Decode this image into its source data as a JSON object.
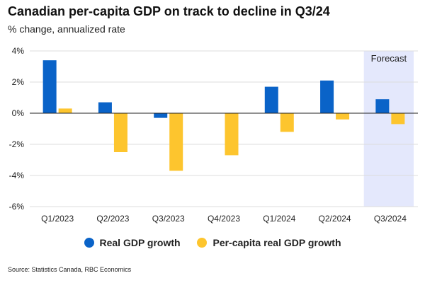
{
  "header": {
    "title": "Canadian per-capita GDP on track to decline in Q3/24",
    "subtitle": "% change, annualized rate"
  },
  "source": "Source: Statistics Canada, RBC Economics",
  "colors": {
    "real_gdp": "#0a63c8",
    "per_capita": "#fdc52e",
    "forecast_band": "#e4e8fc",
    "zero_line": "#222222",
    "grid": "#dddddd"
  },
  "chart_data": {
    "type": "bar",
    "title": "Canadian per-capita GDP on track to decline in Q3/24",
    "subtitle": "% change, annualized rate",
    "xlabel": "",
    "ylabel": "",
    "ylim": [
      -6,
      4
    ],
    "yticks": [
      4,
      2,
      0,
      -2,
      -4,
      -6
    ],
    "ytick_labels": [
      "4%",
      "2%",
      "0%",
      "-2%",
      "-4%",
      "-6%"
    ],
    "categories": [
      "Q1/2023",
      "Q2/2023",
      "Q3/2023",
      "Q4/2023",
      "Q1/2024",
      "Q2/2024",
      "Q3/2024"
    ],
    "series": [
      {
        "name": "Real GDP growth",
        "values": [
          3.4,
          0.7,
          -0.3,
          0.0,
          1.7,
          2.1,
          0.9
        ]
      },
      {
        "name": "Per-capita real GDP growth",
        "values": [
          0.3,
          -2.5,
          -3.7,
          -2.7,
          -1.2,
          -0.4,
          -0.7
        ]
      }
    ],
    "forecast": {
      "label": "Forecast",
      "start_category": "Q3/2024"
    },
    "legend_position": "bottom",
    "grid": true
  }
}
